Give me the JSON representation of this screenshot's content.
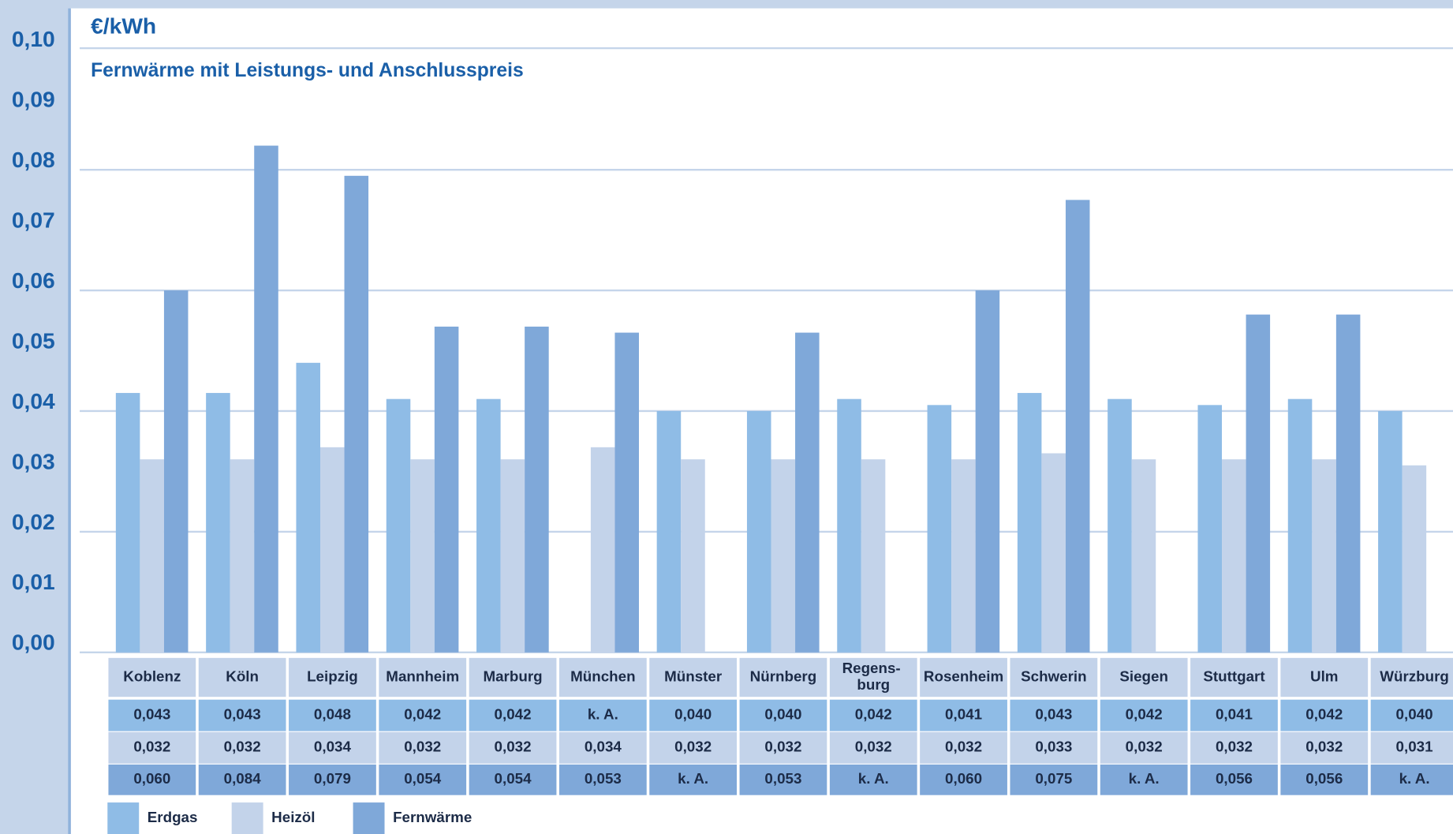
{
  "chart_data": {
    "type": "bar",
    "unit_label": "€/kWh",
    "title": "Fernwärme mit Leistungs- und Anschlusspreis",
    "categories": [
      "Koblenz",
      "Köln",
      "Leipzig",
      "Mannheim",
      "Marburg",
      "München",
      "Münster",
      "Nürnberg",
      "Regens-\nburg",
      "Rosenheim",
      "Schwerin",
      "Siegen",
      "Stuttgart",
      "Ulm",
      "Würzburg"
    ],
    "series": [
      {
        "name": "Erdgas",
        "color": "#8fbce6",
        "values": [
          0.043,
          0.043,
          0.048,
          0.042,
          0.042,
          null,
          0.04,
          0.04,
          0.042,
          0.041,
          0.043,
          0.042,
          0.041,
          0.042,
          0.04
        ],
        "value_labels": [
          "0,043",
          "0,043",
          "0,048",
          "0,042",
          "0,042",
          "k. A.",
          "0,040",
          "0,040",
          "0,042",
          "0,041",
          "0,043",
          "0,042",
          "0,041",
          "0,042",
          "0,040"
        ]
      },
      {
        "name": "Heizöl",
        "color": "#c3d3ea",
        "values": [
          0.032,
          0.032,
          0.034,
          0.032,
          0.032,
          0.034,
          0.032,
          0.032,
          0.032,
          0.032,
          0.033,
          0.032,
          0.032,
          0.032,
          0.031
        ],
        "value_labels": [
          "0,032",
          "0,032",
          "0,034",
          "0,032",
          "0,032",
          "0,034",
          "0,032",
          "0,032",
          "0,032",
          "0,032",
          "0,033",
          "0,032",
          "0,032",
          "0,032",
          "0,031"
        ]
      },
      {
        "name": "Fernwärme",
        "color": "#7fa8d9",
        "values": [
          0.06,
          0.084,
          0.079,
          0.054,
          0.054,
          0.053,
          null,
          0.053,
          null,
          0.06,
          0.075,
          null,
          0.056,
          0.056,
          null
        ],
        "value_labels": [
          "0,060",
          "0,084",
          "0,079",
          "0,054",
          "0,054",
          "0,053",
          "k. A.",
          "0,053",
          "k. A.",
          "0,060",
          "0,075",
          "k. A.",
          "0,056",
          "0,056",
          "k. A."
        ]
      }
    ],
    "ylim": [
      0,
      0.1
    ],
    "yticks": [
      {
        "value": 0,
        "label": "0,00"
      },
      {
        "value": 0.01,
        "label": "0,01"
      },
      {
        "value": 0.02,
        "label": "0,02"
      },
      {
        "value": 0.03,
        "label": "0,03"
      },
      {
        "value": 0.04,
        "label": "0,04"
      },
      {
        "value": 0.05,
        "label": "0,05"
      },
      {
        "value": 0.06,
        "label": "0,06"
      },
      {
        "value": 0.07,
        "label": "0,07"
      },
      {
        "value": 0.08,
        "label": "0,08"
      },
      {
        "value": 0.09,
        "label": "0,09"
      },
      {
        "value": 0.1,
        "label": "0,10"
      }
    ],
    "grid": true
  }
}
